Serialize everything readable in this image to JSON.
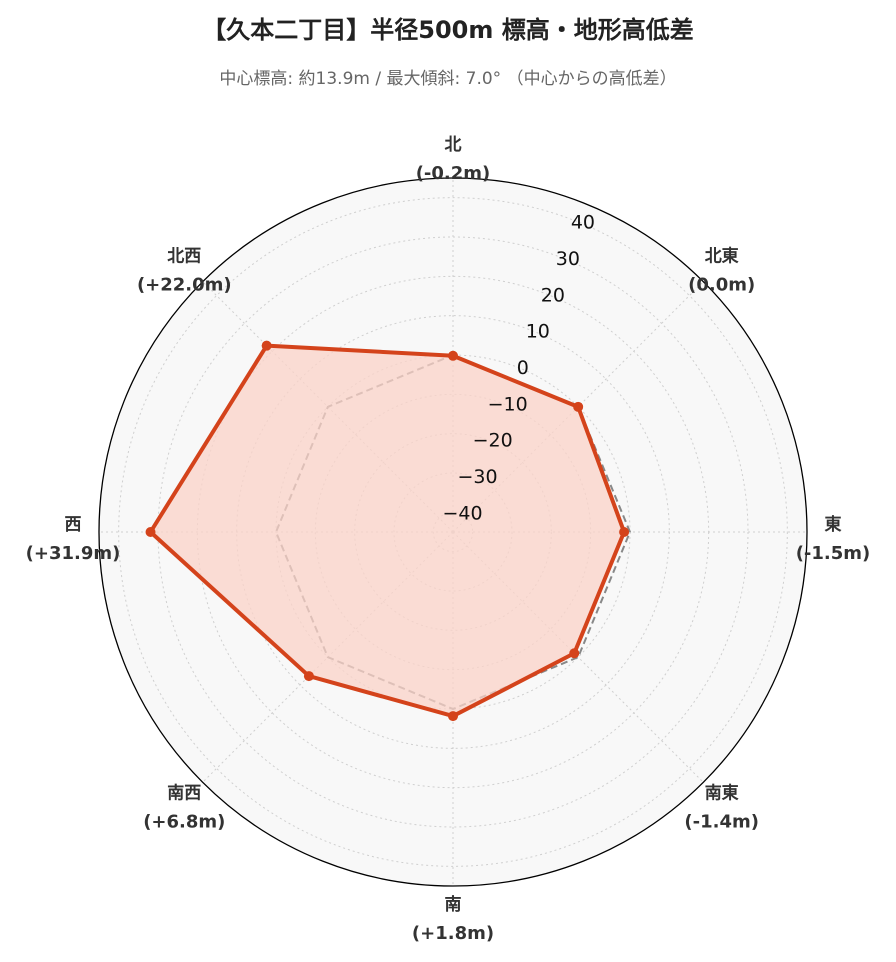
{
  "header": {
    "title": "【久本二丁目】半径500m 標高・地形高低差",
    "subtitle": "中心標高: 約13.9m / 最大傾斜: 7.0° （中心からの高低差）"
  },
  "chart_data": {
    "type": "radar",
    "title": "【久本二丁目】半径500m 標高・地形高低差",
    "subtitle": "中心標高: 約13.9m / 最大傾斜: 7.0° （中心からの高低差）",
    "categories": [
      "北",
      "北東",
      "東",
      "南東",
      "南",
      "南西",
      "西",
      "北西"
    ],
    "value_labels": [
      "(-0.2m)",
      "(0.0m)",
      "(-1.5m)",
      "(-1.4m)",
      "(+1.8m)",
      "(+6.8m)",
      "(+31.9m)",
      "(+22.0m)"
    ],
    "series": [
      {
        "values": [
          -0.2,
          0.0,
          -1.5,
          -1.4,
          1.8,
          6.8,
          31.9,
          22.0
        ]
      }
    ],
    "reference": {
      "values": [
        0,
        0,
        0,
        0,
        0,
        0,
        0,
        0
      ],
      "style": "dashed"
    },
    "rlim": [
      -45,
      45
    ],
    "rticks": [
      -40,
      -30,
      -20,
      -10,
      0,
      10,
      20,
      30,
      40
    ],
    "rtick_labels": [
      "−40",
      "−30",
      "−20",
      "−10",
      "0",
      "10",
      "20",
      "30",
      "40"
    ],
    "grid": true,
    "colors": {
      "line": "#d4431b",
      "fill": "#fbd3c8",
      "reference": "#888888",
      "plot_background": "#f8f8f8",
      "grid": "#cfcfcf"
    }
  }
}
